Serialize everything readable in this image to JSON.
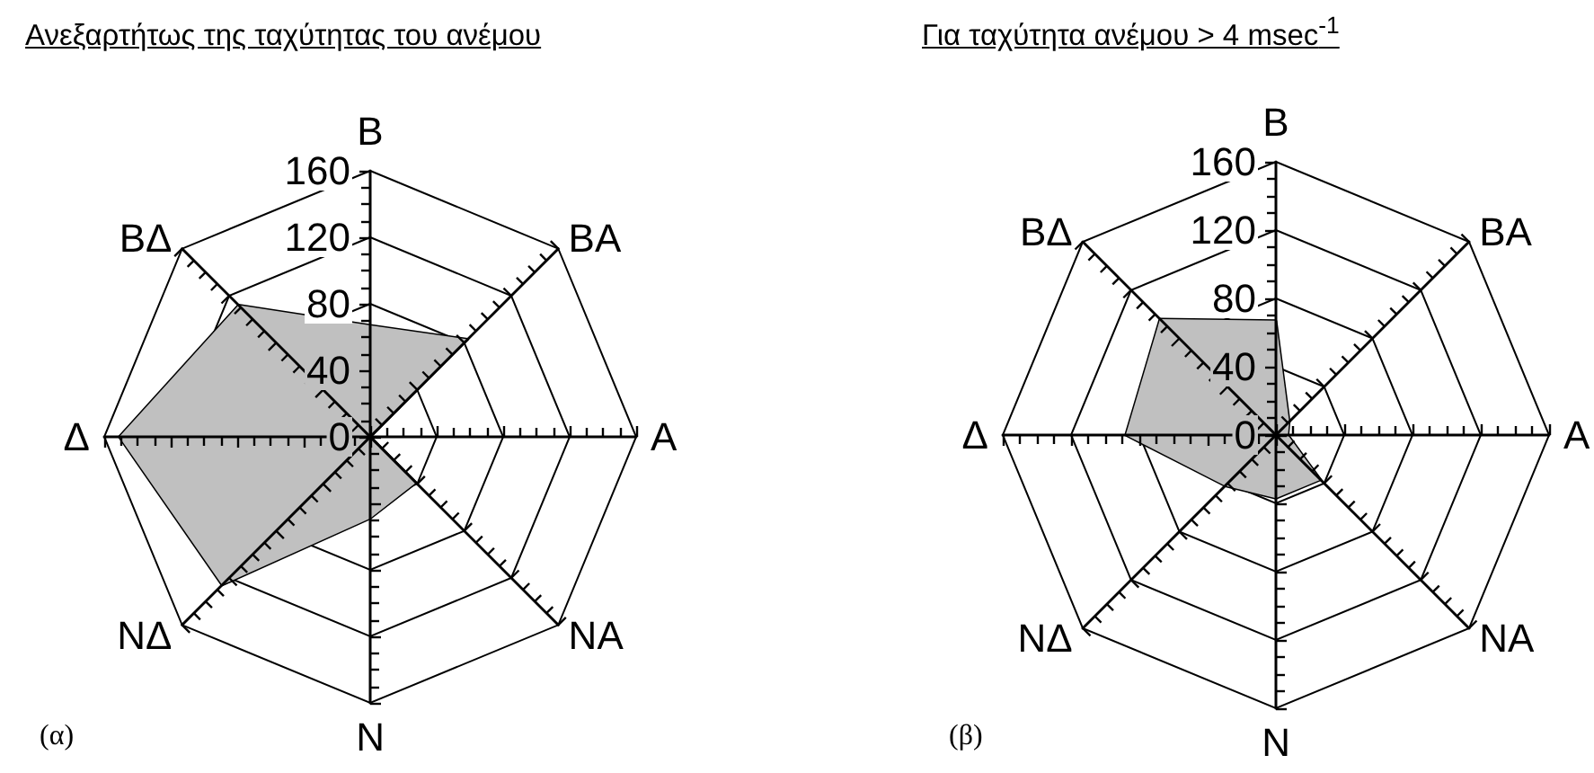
{
  "chart_data": [
    {
      "type": "radar",
      "title": "Ανεξαρτήτως της ταχύτητας του ανέμου",
      "categories": [
        "Β",
        "ΒΑ",
        "Α",
        "ΝΑ",
        "Ν",
        "ΝΔ",
        "Δ",
        "ΒΔ"
      ],
      "series": [
        {
          "color": "#c0c0c0",
          "values": [
            67,
            83,
            0,
            39,
            49,
            126,
            151,
            112
          ]
        }
      ],
      "ylim": [
        0,
        160
      ],
      "yticks": [
        0,
        40,
        80,
        120,
        160
      ],
      "grid": true,
      "annotations": [
        "(α)"
      ]
    },
    {
      "type": "radar",
      "title": "Για ταχύτητα ανέμου > 4 msec$^{-1}$",
      "categories": [
        "Β",
        "ΒΑ",
        "Α",
        "ΝΑ",
        "Ν",
        "ΝΔ",
        "Δ",
        "ΒΔ"
      ],
      "series": [
        {
          "color": "#c0c0c0",
          "values": [
            67,
            11,
            7,
            37,
            37,
            42,
            88,
            96
          ]
        }
      ],
      "ylim": [
        0,
        160
      ],
      "yticks": [
        0,
        40,
        80,
        120,
        160
      ],
      "grid": true,
      "annotations": [
        "(β)"
      ]
    }
  ]
}
